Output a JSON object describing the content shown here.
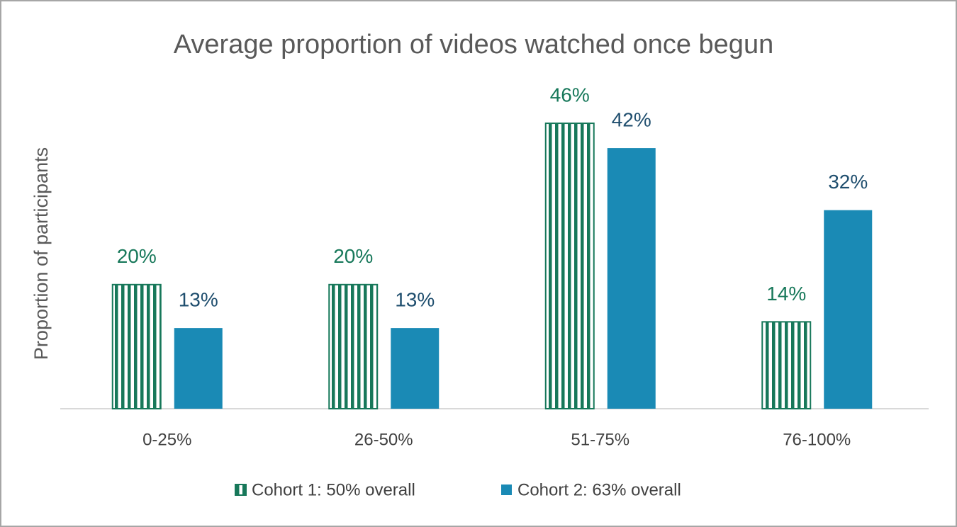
{
  "chart_data": {
    "type": "bar",
    "title": "Average proportion of videos watched once begun",
    "y_label": "Proportion of participants",
    "categories": [
      "0-25%",
      "26-50%",
      "51-75%",
      "76-100%"
    ],
    "series": [
      {
        "name": "Cohort 1: 50% overall",
        "color": "#17785a",
        "label_color": "#17785a",
        "pattern": "vertical-stripes",
        "values": [
          20,
          20,
          46,
          14
        ],
        "value_labels": [
          "20%",
          "20%",
          "46%",
          "14%"
        ]
      },
      {
        "name": "Cohort 2: 63% overall",
        "color": "#1a8ab5",
        "label_color": "#1f4e6e",
        "pattern": "solid",
        "values": [
          13,
          13,
          42,
          32
        ],
        "value_labels": [
          "13%",
          "13%",
          "42%",
          "32%"
        ]
      }
    ],
    "ylim": [
      0,
      50
    ],
    "legend": "bottom"
  }
}
